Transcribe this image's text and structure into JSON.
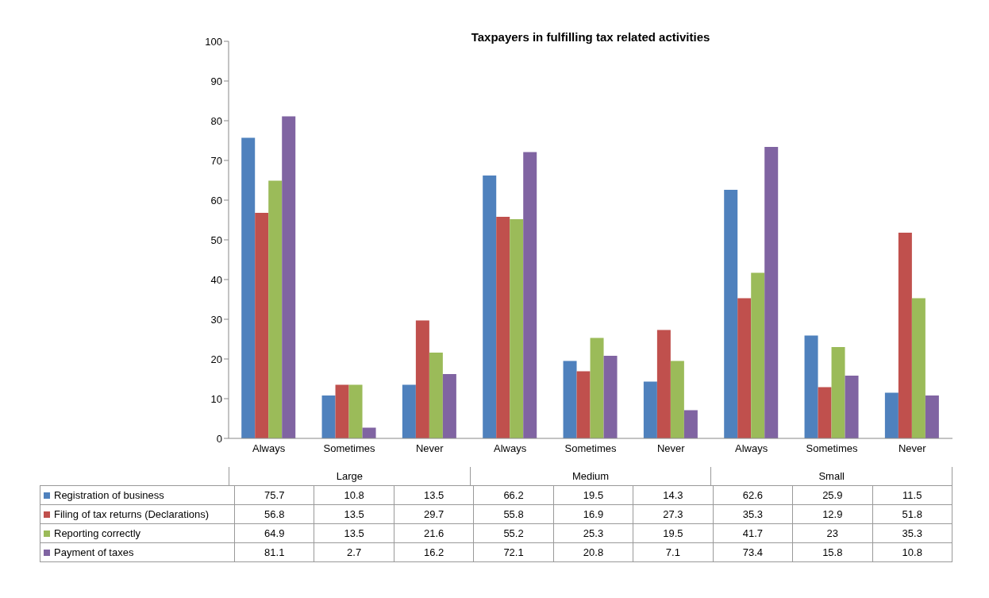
{
  "chart_data": {
    "type": "bar",
    "title": "Taxpayers in fulfilling tax related activities",
    "categories": [
      "Always",
      "Sometimes",
      "Never",
      "Always",
      "Sometimes",
      "Never",
      "Always",
      "Sometimes",
      "Never"
    ],
    "annotations": [
      "Large",
      "Medium",
      "Small"
    ],
    "series": [
      {
        "name": "Registration of business",
        "color": "#4f81bd",
        "values": [
          75.7,
          10.8,
          13.5,
          66.2,
          19.5,
          14.3,
          62.6,
          25.9,
          11.5
        ]
      },
      {
        "name": "Filing of tax returns (Declarations)",
        "color": "#c0504d",
        "values": [
          56.8,
          13.5,
          29.7,
          55.8,
          16.9,
          27.3,
          35.3,
          12.9,
          51.8
        ]
      },
      {
        "name": "Reporting correctly",
        "color": "#9bbb59",
        "values": [
          64.9,
          13.5,
          21.6,
          55.2,
          25.3,
          19.5,
          41.7,
          23,
          35.3
        ]
      },
      {
        "name": "Payment of taxes",
        "color": "#8064a2",
        "values": [
          81.1,
          2.7,
          16.2,
          72.1,
          20.8,
          7.1,
          73.4,
          15.8,
          10.8
        ]
      }
    ],
    "ylim": [
      0,
      100
    ],
    "yticks": [
      0,
      10,
      20,
      30,
      40,
      50,
      60,
      70,
      80,
      90,
      100
    ],
    "grid": false,
    "data_labels": true,
    "legend": "bottom"
  }
}
